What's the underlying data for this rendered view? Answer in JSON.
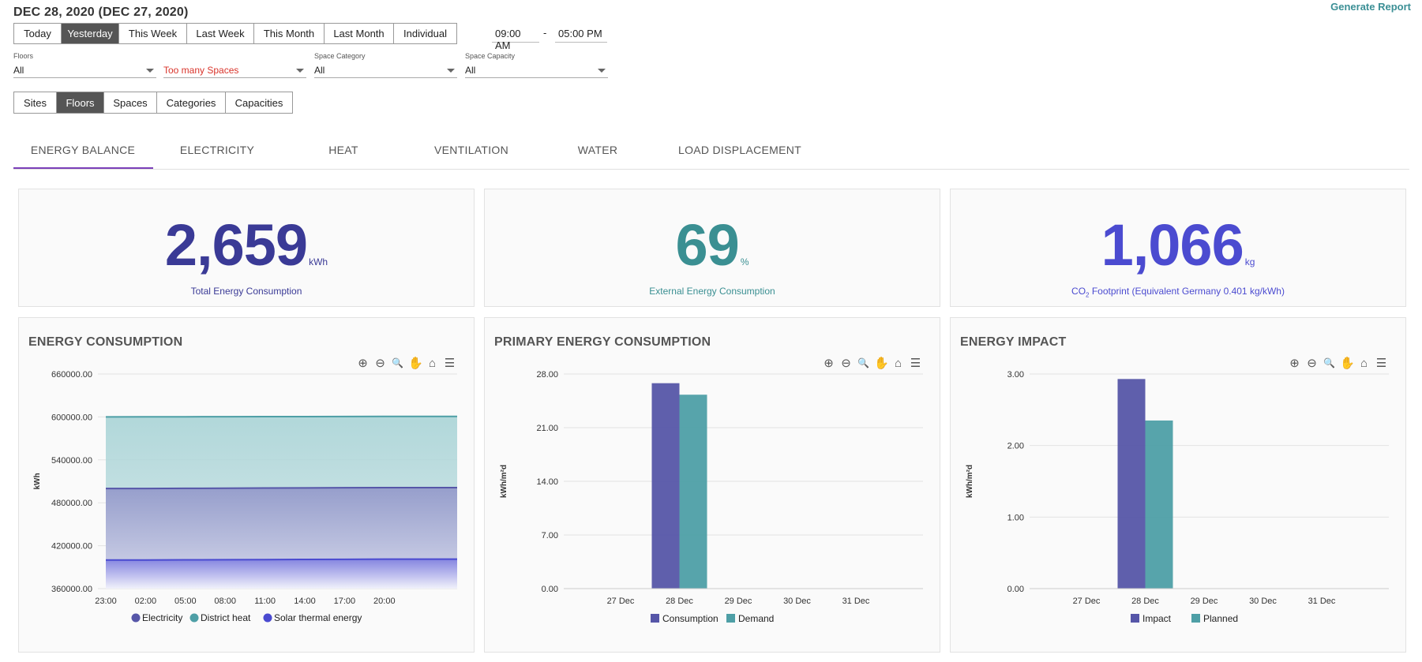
{
  "header": {
    "date_title": "DEC 28, 2020 (DEC 27, 2020)",
    "generate_report": "Generate Report"
  },
  "period_buttons": [
    {
      "label": "Today",
      "active": false
    },
    {
      "label": "Yesterday",
      "active": true
    },
    {
      "label": "This Week",
      "active": false
    },
    {
      "label": "Last Week",
      "active": false
    },
    {
      "label": "This Month",
      "active": false
    },
    {
      "label": "Last Month",
      "active": false
    },
    {
      "label": "Individual",
      "active": false
    }
  ],
  "time_range": {
    "start": "09:00 AM",
    "separator": "-",
    "end": "05:00 PM"
  },
  "filters": [
    {
      "label": "Floors",
      "value": "All",
      "warning": false
    },
    {
      "label": "",
      "value": "Too many Spaces",
      "warning": true
    },
    {
      "label": "Space Category",
      "value": "All",
      "warning": false
    },
    {
      "label": "Space Capacity",
      "value": "All",
      "warning": false
    }
  ],
  "group_buttons": [
    {
      "label": "Sites",
      "active": false
    },
    {
      "label": "Floors",
      "active": true
    },
    {
      "label": "Spaces",
      "active": false
    },
    {
      "label": "Categories",
      "active": false
    },
    {
      "label": "Capacities",
      "active": false
    }
  ],
  "tabs": [
    {
      "label": "ENERGY BALANCE",
      "active": true
    },
    {
      "label": "ELECTRICITY",
      "active": false
    },
    {
      "label": "HEAT",
      "active": false
    },
    {
      "label": "VENTILATION",
      "active": false
    },
    {
      "label": "WATER",
      "active": false
    },
    {
      "label": "LOAD DISPLACEMENT",
      "active": false
    }
  ],
  "kpis": [
    {
      "value": "2,659",
      "unit": "kWh",
      "caption": "Total Energy Consumption",
      "color": "#3a3a96"
    },
    {
      "value": "69",
      "unit": "%",
      "caption": "External Energy Consumption",
      "color": "#3a8f92"
    },
    {
      "value": "1,066",
      "unit": "kg",
      "caption_pre": "CO",
      "caption_sub": "2",
      "caption_post": " Footprint (Equivalent Germany 0.401 kg/kWh)",
      "color": "#4b4bd0"
    }
  ],
  "toolbar_icons": [
    "zoom-in-icon",
    "zoom-out-icon",
    "zoom-select-icon",
    "pan-hand-icon",
    "home-reset-icon",
    "menu-icon"
  ],
  "colors": {
    "purple": "#5656a8",
    "teal": "#4e9fa6",
    "blue": "#4a4ad0",
    "tab_underline": "#7b3fb8"
  },
  "chart_data": [
    {
      "type": "area",
      "title": "ENERGY CONSUMPTION",
      "ylabel": "kWh",
      "xlabel": "",
      "x": [
        "23:00",
        "02:00",
        "05:00",
        "08:00",
        "11:00",
        "14:00",
        "17:00",
        "20:00"
      ],
      "ylim": [
        360000,
        660000
      ],
      "yticks": [
        "360000.00",
        "420000.00",
        "480000.00",
        "540000.00",
        "600000.00",
        "660000.00"
      ],
      "series": [
        {
          "name": "Electricity",
          "values": [
            500000,
            500000,
            500200,
            500400,
            500600,
            500800,
            501000,
            501200
          ]
        },
        {
          "name": "District heat",
          "values": [
            600000,
            600100,
            600200,
            600300,
            600400,
            600500,
            600600,
            600700
          ]
        },
        {
          "name": "Solar thermal energy",
          "values": [
            400000,
            400000,
            400200,
            400400,
            400600,
            400800,
            401000,
            401200
          ]
        }
      ],
      "legend": "bottom"
    },
    {
      "type": "bar",
      "title": "PRIMARY ENERGY CONSUMPTION",
      "ylabel": "kWh/m²d",
      "categories": [
        "27 Dec",
        "28 Dec",
        "29 Dec",
        "30 Dec",
        "31 Dec"
      ],
      "ylim": [
        0,
        28
      ],
      "yticks": [
        "0.00",
        "7.00",
        "14.00",
        "21.00",
        "28.00"
      ],
      "series": [
        {
          "name": "Consumption",
          "values": [
            0,
            26.8,
            0,
            0,
            0
          ]
        },
        {
          "name": "Demand",
          "values": [
            0,
            25.3,
            0,
            0,
            0
          ]
        }
      ],
      "legend": "bottom"
    },
    {
      "type": "bar",
      "title": "ENERGY IMPACT",
      "ylabel": "kWh/m²d",
      "categories": [
        "27 Dec",
        "28 Dec",
        "29 Dec",
        "30 Dec",
        "31 Dec"
      ],
      "ylim": [
        0,
        3
      ],
      "yticks": [
        "0.00",
        "1.00",
        "2.00",
        "3.00"
      ],
      "series": [
        {
          "name": "Impact",
          "values": [
            0,
            2.93,
            0,
            0,
            0
          ]
        },
        {
          "name": "Planned",
          "values": [
            0,
            2.35,
            0,
            0,
            0
          ]
        }
      ],
      "legend": "bottom"
    }
  ]
}
